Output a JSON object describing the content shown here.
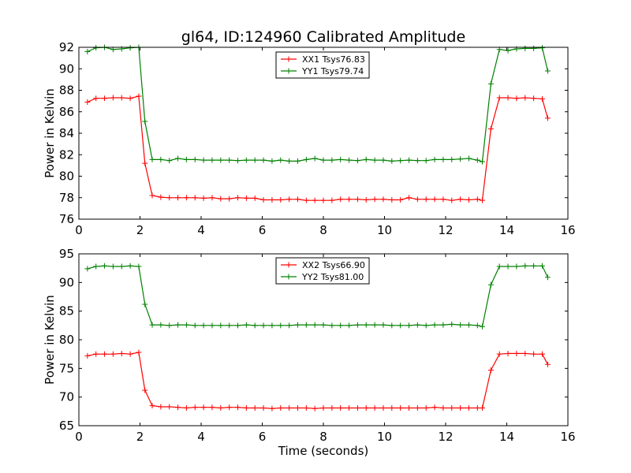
{
  "title": "gl64, ID:124960 Calibrated Amplitude",
  "colors": {
    "red": "#ff0000",
    "green": "#008000"
  },
  "chart_data": [
    {
      "type": "line",
      "ylabel": "Power in Kelvin",
      "xlabel": "",
      "xlim": [
        0,
        16
      ],
      "ylim": [
        76,
        92
      ],
      "xticks": [
        0,
        2,
        4,
        6,
        8,
        10,
        12,
        14,
        16
      ],
      "yticks": [
        76,
        78,
        80,
        82,
        84,
        86,
        88,
        90,
        92
      ],
      "grid": false,
      "legend_position": "upper-center",
      "x": [
        0.28,
        0.56,
        0.84,
        1.12,
        1.4,
        1.68,
        1.96,
        2.16,
        2.4,
        2.68,
        2.96,
        3.24,
        3.52,
        3.8,
        4.08,
        4.36,
        4.64,
        4.92,
        5.2,
        5.48,
        5.76,
        6.04,
        6.32,
        6.6,
        6.88,
        7.16,
        7.44,
        7.72,
        8.0,
        8.28,
        8.56,
        8.84,
        9.12,
        9.4,
        9.68,
        9.96,
        10.24,
        10.52,
        10.8,
        11.08,
        11.36,
        11.64,
        11.92,
        12.2,
        12.48,
        12.76,
        13.04,
        13.2,
        13.48,
        13.76,
        14.04,
        14.32,
        14.6,
        14.88,
        15.16,
        15.34
      ],
      "series": [
        {
          "name": "XX1 Tsys76.83",
          "color": "#ff0000",
          "values": [
            86.9,
            87.25,
            87.25,
            87.3,
            87.3,
            87.25,
            87.45,
            81.2,
            78.2,
            78.05,
            78.0,
            78.0,
            78.0,
            78.0,
            77.95,
            78.0,
            77.9,
            77.9,
            78.0,
            77.95,
            77.95,
            77.8,
            77.8,
            77.8,
            77.85,
            77.85,
            77.75,
            77.75,
            77.75,
            77.75,
            77.85,
            77.85,
            77.85,
            77.8,
            77.85,
            77.85,
            77.8,
            77.8,
            78.0,
            77.85,
            77.85,
            77.85,
            77.85,
            77.75,
            77.85,
            77.8,
            77.85,
            77.75,
            84.4,
            87.3,
            87.3,
            87.25,
            87.3,
            87.25,
            87.2,
            85.4
          ]
        },
        {
          "name": "YY1 Tsys79.74",
          "color": "#008000",
          "values": [
            91.6,
            91.95,
            92.0,
            91.8,
            91.85,
            91.95,
            92.0,
            85.1,
            81.55,
            81.55,
            81.45,
            81.65,
            81.55,
            81.55,
            81.5,
            81.5,
            81.5,
            81.5,
            81.45,
            81.5,
            81.5,
            81.5,
            81.4,
            81.5,
            81.4,
            81.4,
            81.55,
            81.65,
            81.5,
            81.5,
            81.55,
            81.5,
            81.45,
            81.55,
            81.5,
            81.5,
            81.4,
            81.45,
            81.5,
            81.45,
            81.45,
            81.55,
            81.55,
            81.55,
            81.6,
            81.65,
            81.5,
            81.35,
            88.6,
            91.8,
            91.7,
            91.85,
            91.9,
            91.9,
            91.95,
            89.8
          ]
        }
      ]
    },
    {
      "type": "line",
      "ylabel": "Power in Kelvin",
      "xlabel": "Time (seconds)",
      "xlim": [
        0,
        16
      ],
      "ylim": [
        65,
        95
      ],
      "xticks": [
        0,
        2,
        4,
        6,
        8,
        10,
        12,
        14,
        16
      ],
      "yticks": [
        65,
        70,
        75,
        80,
        85,
        90,
        95
      ],
      "grid": false,
      "legend_position": "upper-center",
      "x": [
        0.28,
        0.56,
        0.84,
        1.12,
        1.4,
        1.68,
        1.96,
        2.16,
        2.4,
        2.68,
        2.96,
        3.24,
        3.52,
        3.8,
        4.08,
        4.36,
        4.64,
        4.92,
        5.2,
        5.48,
        5.76,
        6.04,
        6.32,
        6.6,
        6.88,
        7.16,
        7.44,
        7.72,
        8.0,
        8.28,
        8.56,
        8.84,
        9.12,
        9.4,
        9.68,
        9.96,
        10.24,
        10.52,
        10.8,
        11.08,
        11.36,
        11.64,
        11.92,
        12.2,
        12.48,
        12.76,
        13.04,
        13.2,
        13.48,
        13.76,
        14.04,
        14.32,
        14.6,
        14.88,
        15.16,
        15.34
      ],
      "series": [
        {
          "name": "XX2 Tsys66.90",
          "color": "#ff0000",
          "values": [
            77.2,
            77.5,
            77.5,
            77.5,
            77.6,
            77.5,
            77.8,
            71.2,
            68.5,
            68.3,
            68.3,
            68.2,
            68.1,
            68.2,
            68.2,
            68.2,
            68.1,
            68.2,
            68.2,
            68.1,
            68.1,
            68.1,
            68.0,
            68.1,
            68.1,
            68.1,
            68.1,
            68.0,
            68.1,
            68.1,
            68.1,
            68.1,
            68.1,
            68.1,
            68.1,
            68.1,
            68.1,
            68.1,
            68.1,
            68.1,
            68.1,
            68.2,
            68.1,
            68.1,
            68.1,
            68.1,
            68.1,
            68.1,
            74.7,
            77.5,
            77.6,
            77.6,
            77.6,
            77.5,
            77.5,
            75.7
          ]
        },
        {
          "name": "YY2 Tsys81.00",
          "color": "#008000",
          "values": [
            92.4,
            92.8,
            92.9,
            92.8,
            92.8,
            92.9,
            92.8,
            86.2,
            82.6,
            82.6,
            82.5,
            82.6,
            82.6,
            82.5,
            82.5,
            82.5,
            82.5,
            82.5,
            82.5,
            82.6,
            82.5,
            82.5,
            82.5,
            82.5,
            82.5,
            82.6,
            82.6,
            82.6,
            82.6,
            82.5,
            82.5,
            82.5,
            82.6,
            82.6,
            82.6,
            82.6,
            82.5,
            82.5,
            82.5,
            82.6,
            82.5,
            82.6,
            82.6,
            82.7,
            82.6,
            82.6,
            82.5,
            82.3,
            89.6,
            92.8,
            92.8,
            92.8,
            92.9,
            92.9,
            92.9,
            90.9
          ]
        }
      ]
    }
  ]
}
